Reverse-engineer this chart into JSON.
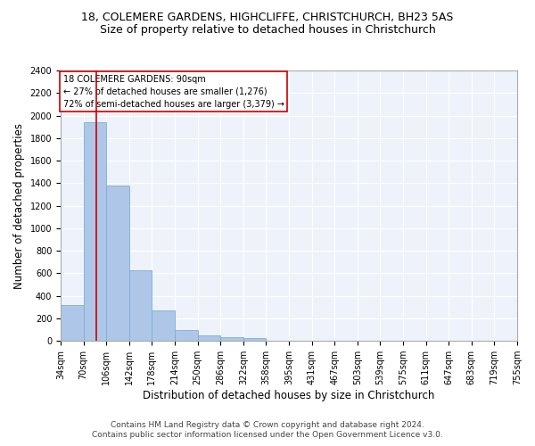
{
  "title1": "18, COLEMERE GARDENS, HIGHCLIFFE, CHRISTCHURCH, BH23 5AS",
  "title2": "Size of property relative to detached houses in Christchurch",
  "xlabel": "Distribution of detached houses by size in Christchurch",
  "ylabel": "Number of detached properties",
  "bar_values": [
    315,
    1940,
    1380,
    630,
    270,
    100,
    47,
    30,
    25,
    0,
    0,
    0,
    0,
    0,
    0,
    0,
    0,
    0,
    0,
    0
  ],
  "bin_labels": [
    "34sqm",
    "70sqm",
    "106sqm",
    "142sqm",
    "178sqm",
    "214sqm",
    "250sqm",
    "286sqm",
    "322sqm",
    "358sqm",
    "395sqm",
    "431sqm",
    "467sqm",
    "503sqm",
    "539sqm",
    "575sqm",
    "611sqm",
    "647sqm",
    "683sqm",
    "719sqm",
    "755sqm"
  ],
  "bar_color": "#aec6e8",
  "bar_edge_color": "#7aafd4",
  "vline_color": "#cc0000",
  "vline_x": 1.56,
  "annotation_text": "18 COLEMERE GARDENS: 90sqm\n← 27% of detached houses are smaller (1,276)\n72% of semi-detached houses are larger (3,379) →",
  "annotation_box_color": "#cc0000",
  "annotation_bg": "white",
  "ylim": [
    0,
    2400
  ],
  "yticks": [
    0,
    200,
    400,
    600,
    800,
    1000,
    1200,
    1400,
    1600,
    1800,
    2000,
    2200,
    2400
  ],
  "footer1": "Contains HM Land Registry data © Crown copyright and database right 2024.",
  "footer2": "Contains public sector information licensed under the Open Government Licence v3.0.",
  "title1_fontsize": 9,
  "title2_fontsize": 9,
  "xlabel_fontsize": 8.5,
  "ylabel_fontsize": 8.5,
  "tick_fontsize": 7,
  "footer_fontsize": 6.5,
  "bg_color": "#eef3fb",
  "grid_color": "white"
}
